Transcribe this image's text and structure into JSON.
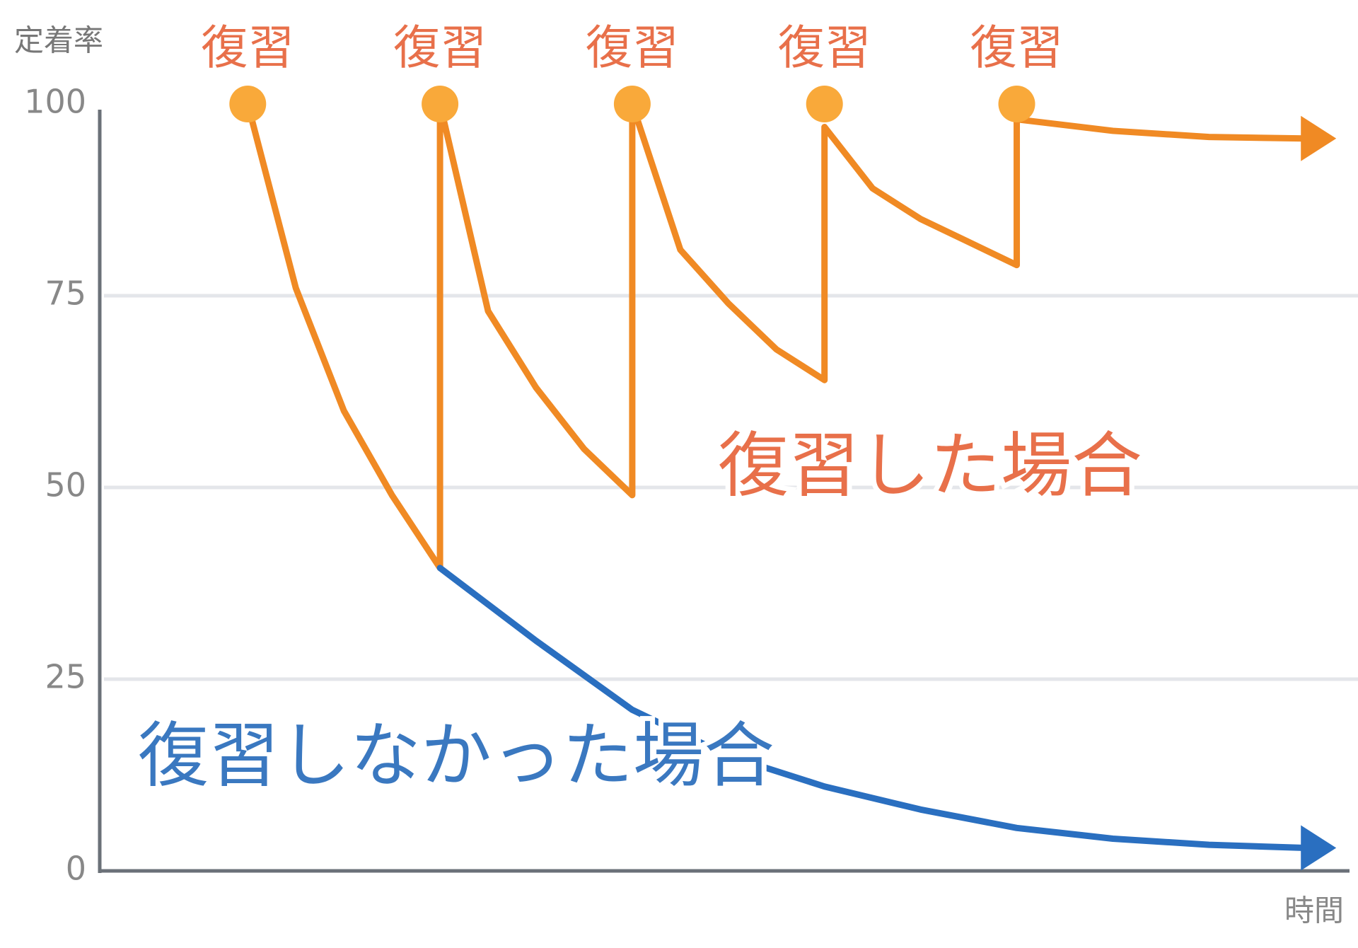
{
  "chart_data": {
    "type": "line",
    "ylabel": "定着率",
    "xlabel": "時間",
    "ylim": [
      0,
      100
    ],
    "yticks": [
      0,
      25,
      50,
      75,
      100
    ],
    "xlim": [
      0.23,
      6.65
    ],
    "grid": true,
    "reviews": [
      {
        "label": "復習",
        "x": 1
      },
      {
        "label": "復習",
        "x": 2
      },
      {
        "label": "復習",
        "x": 3
      },
      {
        "label": "復習",
        "x": 4
      },
      {
        "label": "復習",
        "x": 5
      }
    ],
    "review_color": "#f9a93a",
    "series": [
      {
        "name": "復習した場合",
        "color": "#f08a24",
        "label_color": "#e8704a",
        "x": [
          1,
          1.25,
          1.5,
          1.75,
          2,
          2,
          2.25,
          2.5,
          2.75,
          3,
          3,
          3.25,
          3.5,
          3.75,
          4,
          4,
          4.25,
          4.5,
          4.75,
          5,
          5,
          5.5,
          6,
          6.5
        ],
        "values": [
          100,
          76,
          60,
          49,
          39.5,
          100,
          73,
          63,
          55,
          49,
          100,
          81,
          74,
          68,
          64,
          97,
          89,
          85,
          82,
          79,
          98,
          96.5,
          95.7,
          95.5
        ]
      },
      {
        "name": "復習しなかった場合",
        "color": "#2a6fc0",
        "label_color": "#3a78c0",
        "x": [
          2,
          2.5,
          3,
          3.5,
          4,
          4.5,
          5,
          5.5,
          6,
          6.5
        ],
        "values": [
          39.5,
          30,
          21,
          15,
          11,
          8,
          5.6,
          4.2,
          3.4,
          3
        ]
      }
    ]
  }
}
